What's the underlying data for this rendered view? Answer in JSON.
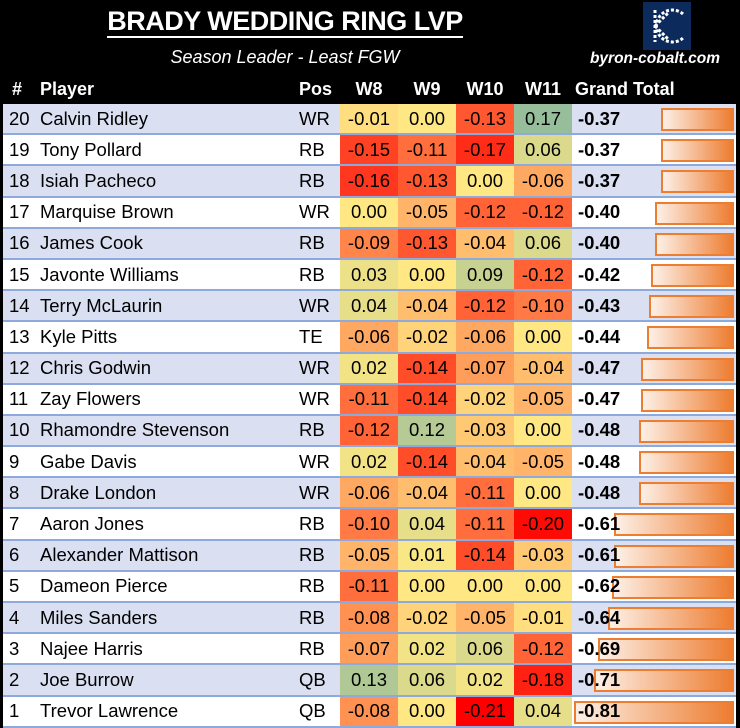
{
  "header": {
    "title": "BRADY WEDDING RING LVP",
    "subtitle": "Season Leader - Least FGW",
    "site": "byron-cobalt.com"
  },
  "columns": {
    "rank": "#",
    "player": "Player",
    "pos": "Pos",
    "w8": "W8",
    "w9": "W9",
    "w10": "W10",
    "w11": "W11",
    "total": "Grand Total"
  },
  "rows": [
    {
      "rank": "20",
      "player": "Calvin Ridley",
      "pos": "WR",
      "w": [
        "-0.01",
        "0.00",
        "-0.13",
        "0.17"
      ],
      "total": "-0.37"
    },
    {
      "rank": "19",
      "player": "Tony Pollard",
      "pos": "RB",
      "w": [
        "-0.15",
        "-0.11",
        "-0.17",
        "0.06"
      ],
      "total": "-0.37"
    },
    {
      "rank": "18",
      "player": "Isiah Pacheco",
      "pos": "RB",
      "w": [
        "-0.16",
        "-0.13",
        "0.00",
        "-0.06"
      ],
      "total": "-0.37"
    },
    {
      "rank": "17",
      "player": "Marquise Brown",
      "pos": "WR",
      "w": [
        "0.00",
        "-0.05",
        "-0.12",
        "-0.12"
      ],
      "total": "-0.40"
    },
    {
      "rank": "16",
      "player": "James Cook",
      "pos": "RB",
      "w": [
        "-0.09",
        "-0.13",
        "-0.04",
        "0.06"
      ],
      "total": "-0.40"
    },
    {
      "rank": "15",
      "player": "Javonte Williams",
      "pos": "RB",
      "w": [
        "0.03",
        "0.00",
        "0.09",
        "-0.12"
      ],
      "total": "-0.42"
    },
    {
      "rank": "14",
      "player": "Terry McLaurin",
      "pos": "WR",
      "w": [
        "0.04",
        "-0.04",
        "-0.12",
        "-0.10"
      ],
      "total": "-0.43"
    },
    {
      "rank": "13",
      "player": "Kyle Pitts",
      "pos": "TE",
      "w": [
        "-0.06",
        "-0.02",
        "-0.06",
        "0.00"
      ],
      "total": "-0.44"
    },
    {
      "rank": "12",
      "player": "Chris Godwin",
      "pos": "WR",
      "w": [
        "0.02",
        "-0.14",
        "-0.07",
        "-0.04"
      ],
      "total": "-0.47"
    },
    {
      "rank": "11",
      "player": "Zay Flowers",
      "pos": "WR",
      "w": [
        "-0.11",
        "-0.14",
        "-0.02",
        "-0.05"
      ],
      "total": "-0.47"
    },
    {
      "rank": "10",
      "player": "Rhamondre Stevenson",
      "pos": "RB",
      "w": [
        "-0.12",
        "0.12",
        "-0.03",
        "0.00"
      ],
      "total": "-0.48"
    },
    {
      "rank": "9",
      "player": "Gabe Davis",
      "pos": "WR",
      "w": [
        "0.02",
        "-0.14",
        "-0.04",
        "-0.05"
      ],
      "total": "-0.48"
    },
    {
      "rank": "8",
      "player": "Drake London",
      "pos": "WR",
      "w": [
        "-0.06",
        "-0.04",
        "-0.11",
        "0.00"
      ],
      "total": "-0.48"
    },
    {
      "rank": "7",
      "player": "Aaron Jones",
      "pos": "RB",
      "w": [
        "-0.10",
        "0.04",
        "-0.11",
        "-0.20"
      ],
      "total": "-0.61"
    },
    {
      "rank": "6",
      "player": "Alexander Mattison",
      "pos": "RB",
      "w": [
        "-0.05",
        "0.01",
        "-0.14",
        "-0.03"
      ],
      "total": "-0.61"
    },
    {
      "rank": "5",
      "player": "Dameon Pierce",
      "pos": "RB",
      "w": [
        "-0.11",
        "0.00",
        "0.00",
        "0.00"
      ],
      "total": "-0.62"
    },
    {
      "rank": "4",
      "player": "Miles Sanders",
      "pos": "RB",
      "w": [
        "-0.08",
        "-0.02",
        "-0.05",
        "-0.01"
      ],
      "total": "-0.64"
    },
    {
      "rank": "3",
      "player": "Najee Harris",
      "pos": "RB",
      "w": [
        "-0.07",
        "0.02",
        "0.06",
        "-0.12"
      ],
      "total": "-0.69"
    },
    {
      "rank": "2",
      "player": "Joe Burrow",
      "pos": "QB",
      "w": [
        "0.13",
        "0.06",
        "0.02",
        "-0.18"
      ],
      "total": "-0.71"
    },
    {
      "rank": "1",
      "player": "Trevor Lawrence",
      "pos": "QB",
      "w": [
        "-0.08",
        "0.00",
        "-0.21",
        "0.04"
      ],
      "total": "-0.81"
    }
  ]
}
